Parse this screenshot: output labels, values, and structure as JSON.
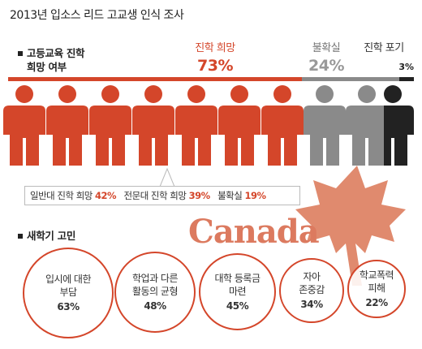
{
  "title": "2013년 입소스 리드 고교생 인식 조사",
  "section1_heading_line1": "고등교육 진학",
  "section1_heading_line2": "희망 여부",
  "section2_heading": "새학기 고민",
  "watermark": "Canada",
  "colors": {
    "want": "#d4462a",
    "unsure": "#8a8a8a",
    "giveup": "#222222"
  },
  "icon_name": "person-icon",
  "chart_data": [
    {
      "type": "bar",
      "title": "고등교육 진학 희망 여부",
      "unit": "%",
      "categories": [
        "진학 희망",
        "불확실",
        "진학 포기"
      ],
      "values": [
        73,
        24,
        3
      ],
      "value_labels": [
        "73%",
        "24%",
        "3%"
      ],
      "breakdown": {
        "label_general": "일반대 진학 희망",
        "value_general": "42%",
        "label_college": "전문대 진학 희망",
        "value_college": "39%",
        "label_unsure": "불확실",
        "value_unsure": "19%"
      }
    },
    {
      "type": "table",
      "title": "새학기 고민",
      "items": [
        {
          "line1": "입시에 대한",
          "line2": "부담",
          "value": 63,
          "label": "63%"
        },
        {
          "line1": "학업과 다른",
          "line2": "활동의 균형",
          "value": 48,
          "label": "48%"
        },
        {
          "line1": "대학 등록금",
          "line2": "마련",
          "value": 45,
          "label": "45%"
        },
        {
          "line1": "자아",
          "line2": "존중감",
          "value": 34,
          "label": "34%"
        },
        {
          "line1": "학교폭력",
          "line2": "피해",
          "value": 22,
          "label": "22%"
        }
      ]
    }
  ]
}
